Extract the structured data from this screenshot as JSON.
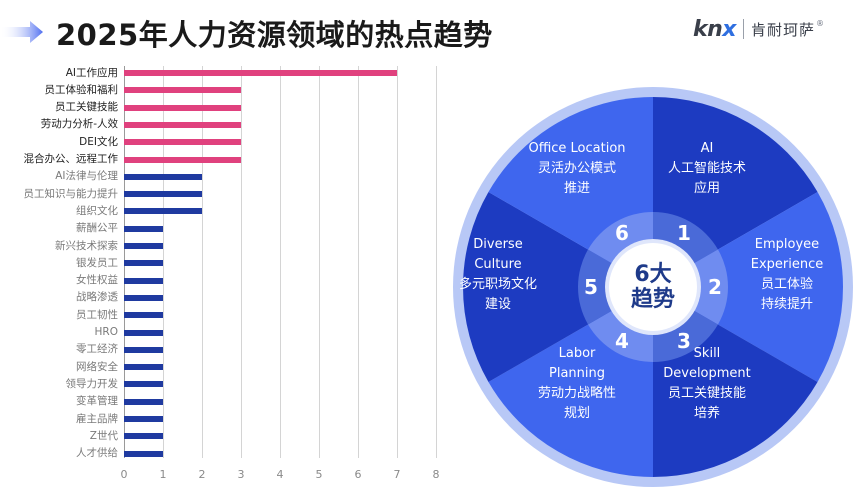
{
  "header": {
    "title": "2025年人力资源领域的热点趋势",
    "brand_latin": "kn",
    "brand_latin_accent": "x",
    "brand_cn": "肯耐珂萨",
    "brand_reg": "®"
  },
  "colors": {
    "hot_bar": "#e0417e",
    "cool_bar": "#1f3aa0",
    "wheel_dark": "#1d3bc1",
    "wheel_light": "#3f66ee",
    "wheel_ring": "#b8c8f6",
    "inner_ring_dark": "#4a6ad8",
    "inner_ring_light": "#6f8cf0",
    "center_text": "#1e3a8a"
  },
  "chart_data": {
    "type": "bar",
    "orientation": "horizontal",
    "title": "2025年人力资源领域的热点趋势",
    "xlabel": "",
    "ylabel": "",
    "xlim": [
      0,
      8
    ],
    "xticks": [
      "0",
      "1",
      "2",
      "3",
      "4",
      "5",
      "6",
      "7",
      "8"
    ],
    "grid": true,
    "categories": [
      "AI工作应用",
      "员工体验和福利",
      "员工关键技能",
      "劳动力分析-人效",
      "DEI文化",
      "混合办公、远程工作",
      "AI法律与伦理",
      "员工知识与能力提升",
      "组织文化",
      "薪酬公平",
      "新兴技术探索",
      "银发员工",
      "女性权益",
      "战略渗透",
      "员工韧性",
      "HRO",
      "零工经济",
      "网络安全",
      "领导力开发",
      "变革管理",
      "雇主品牌",
      "Z世代",
      "人才供给"
    ],
    "values": [
      7,
      3,
      3,
      3,
      3,
      3,
      2,
      2,
      2,
      1,
      1,
      1,
      1,
      1,
      1,
      1,
      1,
      1,
      1,
      1,
      1,
      1,
      1
    ],
    "highlight": [
      true,
      true,
      true,
      true,
      true,
      true,
      false,
      false,
      false,
      false,
      false,
      false,
      false,
      false,
      false,
      false,
      false,
      false,
      false,
      false,
      false,
      false,
      false
    ]
  },
  "wheel": {
    "center_line1": "6大",
    "center_line2": "趋势",
    "segments": [
      {
        "num": "1",
        "en": [
          "AI"
        ],
        "cn": [
          "人工智能技术",
          "应用"
        ]
      },
      {
        "num": "2",
        "en": [
          "Employee",
          "Experience"
        ],
        "cn": [
          "员工体验",
          "持续提升"
        ]
      },
      {
        "num": "3",
        "en": [
          "Skill",
          "Development"
        ],
        "cn": [
          "员工关键技能",
          "培养"
        ]
      },
      {
        "num": "4",
        "en": [
          "Labor",
          "Planning"
        ],
        "cn": [
          "劳动力战略性",
          "规划"
        ]
      },
      {
        "num": "5",
        "en": [
          "Diverse",
          "Culture"
        ],
        "cn": [
          "多元职场文化",
          "建设"
        ]
      },
      {
        "num": "6",
        "en": [
          "Office Location"
        ],
        "cn": [
          "灵活办公模式",
          "推进"
        ]
      }
    ]
  }
}
